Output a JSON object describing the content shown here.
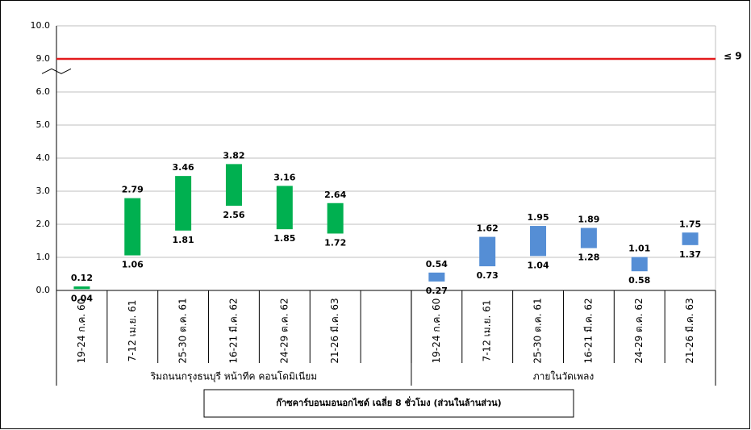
{
  "chart_data": {
    "type": "floating_bar",
    "yticks": [
      {
        "value": 0,
        "label": "0.0"
      },
      {
        "value": 1,
        "label": "1.0"
      },
      {
        "value": 2,
        "label": "2.0"
      },
      {
        "value": 3,
        "label": "3.0"
      },
      {
        "value": 4,
        "label": "4.0"
      },
      {
        "value": 5,
        "label": "5.0"
      },
      {
        "value": 6,
        "label": "6.0"
      },
      {
        "value": 9,
        "label": "9.0"
      },
      {
        "value": 10,
        "label": "10.0"
      }
    ],
    "ylim": [
      0,
      10
    ],
    "grid": true,
    "reference_line": {
      "value": 9,
      "label": "≤ 9",
      "color": "#e31a1c"
    },
    "groups": [
      {
        "name": "ริมถนนกรุงธนบุรี หน้าทีค คอนโดมิเนียม",
        "color": "#00b050",
        "categories": [
          "19-24 ก.ค. 60",
          "7-12 เม.ย. 61",
          "25-30 ต.ค. 61",
          "16-21 มี.ค. 62",
          "24-29 ต.ค. 62",
          "21-26 มี.ค. 63",
          null
        ],
        "low": [
          0.04,
          1.06,
          1.81,
          2.56,
          1.85,
          1.72,
          null
        ],
        "high": [
          0.12,
          2.79,
          3.46,
          3.82,
          3.16,
          2.64,
          null
        ]
      },
      {
        "name": "ภายในวัดเพลง",
        "color": "#558ed5",
        "categories": [
          "19-24 ก.ค. 60",
          "7-12 เม.ย. 61",
          "25-30 ต.ค. 61",
          "16-21 มี.ค. 62",
          "24-29 ต.ค. 62",
          "21-26 มี.ค. 63"
        ],
        "low": [
          0.27,
          0.73,
          1.04,
          1.28,
          0.58,
          1.37
        ],
        "high": [
          0.54,
          1.62,
          1.95,
          1.89,
          1.01,
          1.75
        ]
      }
    ],
    "title": "ก๊าซคาร์บอนมอนอกไซด์ เฉลี่ย 8 ชั่วโมง (ส่วนในล้านส่วน)"
  }
}
